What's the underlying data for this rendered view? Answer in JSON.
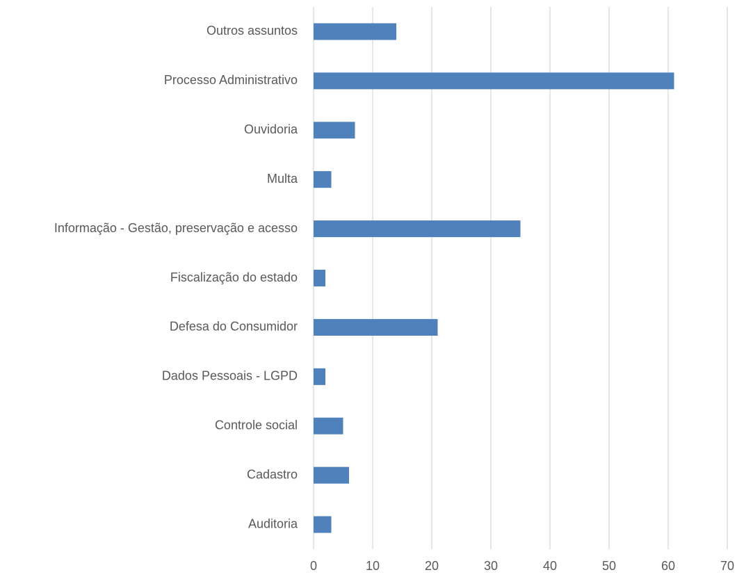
{
  "chart_data": {
    "type": "bar",
    "orientation": "horizontal",
    "categories": [
      "Outros assuntos",
      "Processo Administrativo",
      "Ouvidoria",
      "Multa",
      "Informação - Gestão, preservação e acesso",
      "Fiscalização do estado",
      "Defesa do Consumidor",
      "Dados Pessoais - LGPD",
      "Controle social",
      "Cadastro",
      "Auditoria"
    ],
    "values": [
      14,
      61,
      7,
      3,
      35,
      2,
      21,
      2,
      5,
      6,
      3
    ],
    "color": "#4f81bd",
    "xlim": [
      0,
      70
    ],
    "xticks": [
      0,
      10,
      20,
      30,
      40,
      50,
      60,
      70
    ],
    "grid": true
  }
}
